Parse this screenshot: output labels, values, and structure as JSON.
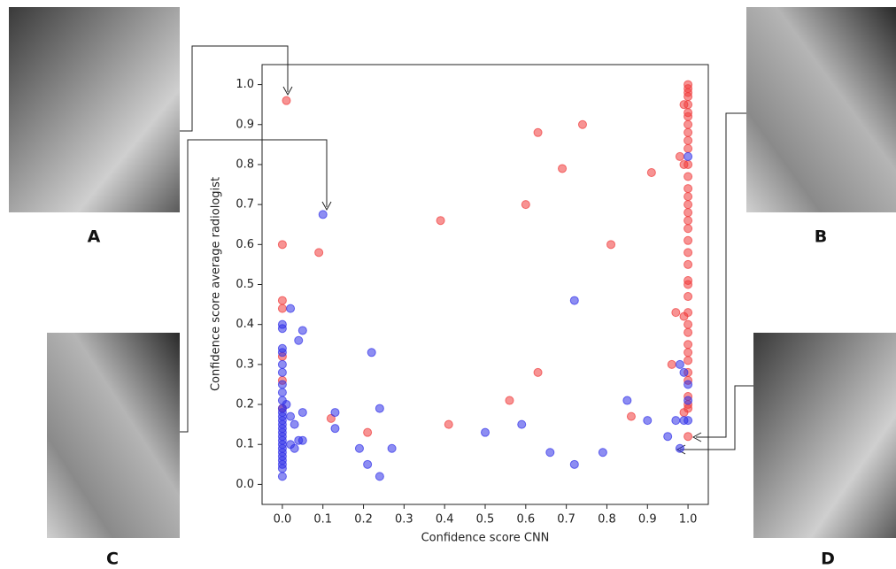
{
  "chart_data": {
    "type": "scatter",
    "xlabel": "Confidence score CNN",
    "ylabel": "Confidence score average radiologist",
    "xlim": [
      -0.05,
      1.05
    ],
    "ylim": [
      -0.05,
      1.05
    ],
    "xticks": [
      {
        "value": 0,
        "label": "0.0"
      },
      0.1,
      0.2,
      0.3,
      0.4,
      0.5,
      0.6,
      0.7,
      0.8,
      0.9,
      {
        "value": 1,
        "label": "1.0"
      }
    ],
    "yticks": [
      {
        "value": 0,
        "label": "0.0"
      },
      0.1,
      0.2,
      0.3,
      0.4,
      0.5,
      0.6,
      0.7,
      0.8,
      0.9,
      {
        "value": 1,
        "label": "1.0"
      }
    ],
    "series": [
      {
        "color": "#f03a3a",
        "x": [
          0.01,
          0.0,
          0.09,
          0.0,
          0.0,
          0.12,
          0.21,
          0.39,
          0.41,
          0.56,
          0.6,
          0.63,
          0.63,
          0.69,
          0.74,
          0.81,
          0.86,
          0.91,
          0.96,
          0.97,
          0.98,
          0.99,
          1.0,
          1.0,
          1.0,
          1.0,
          0.99,
          1.0,
          1.0,
          1.0,
          1.0,
          1.0,
          1.0,
          1.0,
          1.0,
          1.0,
          1.0,
          1.0,
          1.0,
          1.0,
          1.0,
          1.0,
          1.0,
          1.0,
          1.0,
          1.0,
          1.0,
          1.0,
          1.0,
          0.99,
          1.0,
          1.0,
          1.0,
          1.0,
          1.0,
          1.0,
          1.0,
          1.0,
          1.0,
          0.99,
          1.0,
          1.0,
          0.0,
          0.0,
          0.0
        ],
        "values": [
          0.96,
          0.6,
          0.58,
          0.46,
          0.44,
          0.165,
          0.13,
          0.66,
          0.15,
          0.21,
          0.7,
          0.88,
          0.28,
          0.79,
          0.9,
          0.6,
          0.17,
          0.78,
          0.3,
          0.43,
          0.82,
          0.8,
          1.0,
          0.99,
          0.98,
          0.97,
          0.95,
          0.95,
          0.93,
          0.92,
          0.9,
          0.88,
          0.86,
          0.84,
          0.8,
          0.77,
          0.74,
          0.72,
          0.7,
          0.68,
          0.66,
          0.64,
          0.61,
          0.58,
          0.55,
          0.51,
          0.5,
          0.47,
          0.43,
          0.42,
          0.4,
          0.38,
          0.35,
          0.33,
          0.31,
          0.28,
          0.26,
          0.22,
          0.2,
          0.18,
          0.19,
          0.12,
          0.32,
          0.26,
          0.19
        ]
      },
      {
        "color": "#3030e8",
        "x": [
          0.1,
          0.72,
          0.02,
          0.0,
          0.0,
          0.05,
          0.04,
          0.0,
          0.0,
          0.0,
          0.0,
          0.0,
          0.0,
          0.0,
          0.01,
          0.0,
          0.0,
          0.0,
          0.0,
          0.0,
          0.0,
          0.0,
          0.0,
          0.0,
          0.0,
          0.0,
          0.0,
          0.0,
          0.0,
          0.0,
          0.0,
          0.0,
          0.02,
          0.03,
          0.05,
          0.02,
          0.04,
          0.05,
          0.03,
          0.13,
          0.13,
          0.19,
          0.21,
          0.22,
          0.24,
          0.24,
          0.27,
          0.5,
          0.59,
          0.66,
          0.72,
          0.79,
          0.85,
          0.9,
          0.95,
          0.97,
          0.98,
          0.98,
          0.99,
          1.0,
          1.0,
          1.0,
          1.0,
          0.99
        ],
        "values": [
          0.675,
          0.46,
          0.44,
          0.4,
          0.39,
          0.385,
          0.36,
          0.34,
          0.33,
          0.3,
          0.28,
          0.25,
          0.23,
          0.21,
          0.2,
          0.19,
          0.18,
          0.17,
          0.16,
          0.15,
          0.14,
          0.13,
          0.12,
          0.11,
          0.1,
          0.09,
          0.08,
          0.07,
          0.06,
          0.05,
          0.04,
          0.02,
          0.17,
          0.15,
          0.18,
          0.1,
          0.11,
          0.11,
          0.09,
          0.18,
          0.14,
          0.09,
          0.05,
          0.33,
          0.19,
          0.02,
          0.09,
          0.13,
          0.15,
          0.08,
          0.05,
          0.08,
          0.21,
          0.16,
          0.12,
          0.16,
          0.09,
          0.3,
          0.28,
          0.25,
          0.21,
          0.16,
          0.82,
          0.16
        ]
      }
    ]
  },
  "panels": [
    {
      "label": "A"
    },
    {
      "label": "B"
    },
    {
      "label": "C"
    },
    {
      "label": "D"
    }
  ]
}
